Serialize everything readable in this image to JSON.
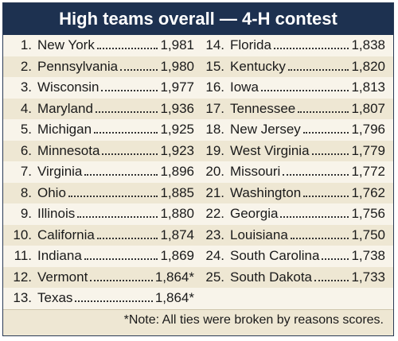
{
  "title": "High teams overall — 4-H contest",
  "rows": [
    {
      "left": {
        "rank": "1.",
        "name": "New York",
        "score": "1,981"
      },
      "right": {
        "rank": "14.",
        "name": "Florida",
        "score": "1,838"
      }
    },
    {
      "left": {
        "rank": "2.",
        "name": "Pennsylvania",
        "score": "1,980"
      },
      "right": {
        "rank": "15.",
        "name": "Kentucky",
        "score": "1,820"
      }
    },
    {
      "left": {
        "rank": "3.",
        "name": "Wisconsin",
        "score": "1,977"
      },
      "right": {
        "rank": "16.",
        "name": "Iowa",
        "score": "1,813"
      }
    },
    {
      "left": {
        "rank": "4.",
        "name": "Maryland",
        "score": "1,936"
      },
      "right": {
        "rank": "17.",
        "name": "Tennessee",
        "score": "1,807"
      }
    },
    {
      "left": {
        "rank": "5.",
        "name": "Michigan",
        "score": "1,925"
      },
      "right": {
        "rank": "18.",
        "name": "New Jersey",
        "score": "1,796"
      }
    },
    {
      "left": {
        "rank": "6.",
        "name": "Minnesota",
        "score": "1,923"
      },
      "right": {
        "rank": "19.",
        "name": "West Virginia",
        "score": "1,779"
      }
    },
    {
      "left": {
        "rank": "7.",
        "name": "Virginia",
        "score": "1,896"
      },
      "right": {
        "rank": "20.",
        "name": "Missouri",
        "score": "1,772"
      }
    },
    {
      "left": {
        "rank": "8.",
        "name": "Ohio",
        "score": "1,885"
      },
      "right": {
        "rank": "21.",
        "name": "Washington",
        "score": "1,762"
      }
    },
    {
      "left": {
        "rank": "9.",
        "name": "Illinois",
        "score": "1,880"
      },
      "right": {
        "rank": "22.",
        "name": "Georgia",
        "score": "1,756"
      }
    },
    {
      "left": {
        "rank": "10.",
        "name": "California",
        "score": "1,874"
      },
      "right": {
        "rank": "23.",
        "name": "Louisiana",
        "score": "1,750"
      }
    },
    {
      "left": {
        "rank": "11.",
        "name": "Indiana",
        "score": "1,869"
      },
      "right": {
        "rank": "24.",
        "name": "South Carolina",
        "score": "1,738"
      }
    },
    {
      "left": {
        "rank": "12.",
        "name": "Vermont",
        "score": "1,864*"
      },
      "right": {
        "rank": "25.",
        "name": "South Dakota",
        "score": "1,733"
      }
    },
    {
      "left": {
        "rank": "13.",
        "name": "Texas",
        "score": "1,864*"
      },
      "right": null
    }
  ],
  "note": "*Note: All ties were broken by reasons scores.",
  "colors": {
    "header_bg": "#1d3150",
    "header_text": "#ffffff",
    "body_bg": "#eee7d3",
    "alt_row_bg": "#f8f4ea"
  }
}
